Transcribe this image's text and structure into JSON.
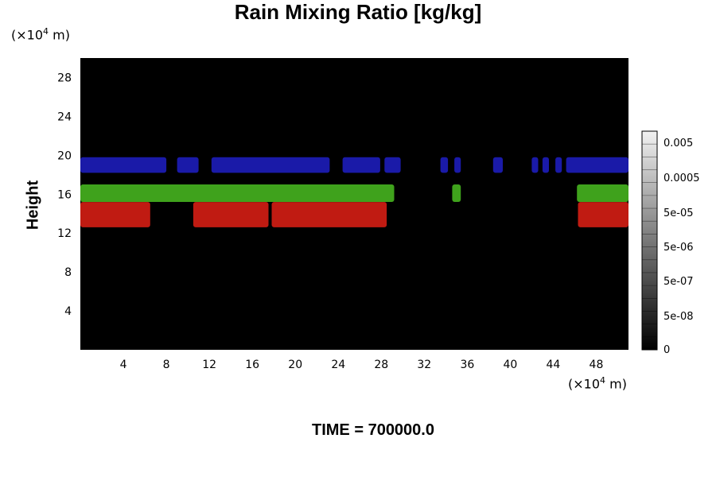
{
  "chart_data": {
    "type": "heatmap",
    "title": "Rain Mixing Ratio [kg/kg]",
    "ylabel": "Height",
    "xunit": "(×10⁴ m)",
    "yunit": "(×10⁴ m)",
    "xlim": [
      0,
      51
    ],
    "ylim": [
      0,
      30
    ],
    "xticks": [
      "4",
      "8",
      "12",
      "16",
      "20",
      "24",
      "28",
      "32",
      "36",
      "40",
      "44",
      "48"
    ],
    "yticks": [
      "4",
      "8",
      "12",
      "16",
      "20",
      "24",
      "28"
    ],
    "colorbar_labels": [
      "0.005",
      "0.0005",
      "5e-05",
      "5e-06",
      "5e-07",
      "5e-08",
      "0"
    ],
    "background_color": "#000000",
    "bands": [
      {
        "color": "#1a1aa8",
        "ylim": [
          18.2,
          19.8
        ],
        "segments": [
          [
            0,
            8
          ],
          [
            9,
            11
          ],
          [
            12.2,
            23.2
          ],
          [
            24.4,
            27.9
          ],
          [
            28.3,
            29.8
          ],
          [
            33.5,
            34.2
          ],
          [
            34.8,
            35.4
          ],
          [
            38.4,
            39.3
          ],
          [
            42,
            42.6
          ],
          [
            43,
            43.6
          ],
          [
            44.2,
            44.8
          ],
          [
            45.2,
            51
          ]
        ]
      },
      {
        "color": "#3fa21c",
        "ylim": [
          15.2,
          17
        ],
        "segments": [
          [
            0,
            29.2
          ],
          [
            34.6,
            35.4
          ],
          [
            46.2,
            51
          ]
        ]
      },
      {
        "color": "#c01b12",
        "ylim": [
          12.6,
          15.2
        ],
        "segments": [
          [
            0,
            6.5
          ],
          [
            10.5,
            17.5
          ],
          [
            17.8,
            28.5
          ],
          [
            46.3,
            51
          ]
        ]
      }
    ]
  },
  "footer": {
    "time_label": "TIME = 700000.0"
  },
  "colors": {
    "plot_background": "#000000",
    "rain_low": "#c01b12",
    "rain_mid": "#3fa21c",
    "rain_high": "#1a1aa8"
  }
}
